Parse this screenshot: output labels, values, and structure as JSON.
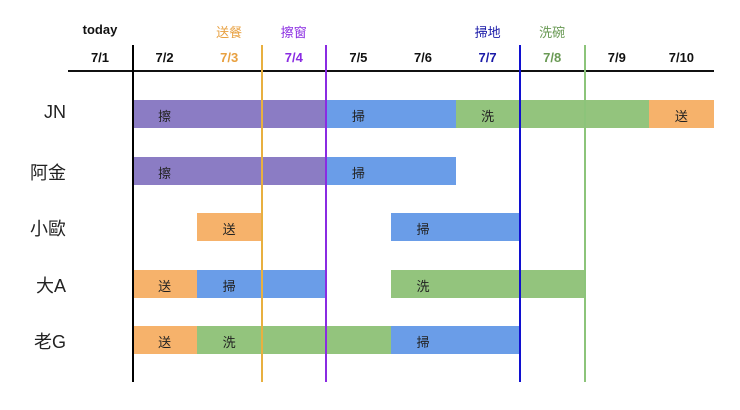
{
  "chart_data": {
    "type": "gantt",
    "title": "",
    "columns": [
      "7/1",
      "7/2",
      "7/3",
      "7/4",
      "7/5",
      "7/6",
      "7/7",
      "7/8",
      "7/9",
      "7/10"
    ],
    "column_colors": [
      "#111111",
      "#111111",
      "#e8a040",
      "#8a2be2",
      "#111111",
      "#111111",
      "#1a1aa8",
      "#6a9a55",
      "#111111",
      "#111111"
    ],
    "top_labels": [
      {
        "text": "today",
        "column": 0,
        "color": "#111111"
      },
      {
        "text": "送餐",
        "column": 2,
        "color": "#e8a040"
      },
      {
        "text": "擦窗",
        "column": 3,
        "color": "#8a2be2"
      },
      {
        "text": "掃地",
        "column": 6,
        "color": "#1a1aa8"
      },
      {
        "text": "洗碗",
        "column": 7,
        "color": "#6a9a55"
      }
    ],
    "deadline_lines": [
      {
        "name": "today",
        "after_column": 0,
        "color": "#000000"
      },
      {
        "name": "送餐",
        "after_column": 2,
        "color": "#e8b040"
      },
      {
        "name": "擦窗",
        "after_column": 3,
        "color": "#8a2be2"
      },
      {
        "name": "掃地",
        "after_column": 6,
        "color": "#1010d0"
      },
      {
        "name": "洗碗",
        "after_column": 7,
        "color": "#8cc47a"
      }
    ],
    "task_colors": {
      "擦": "#8b7cc4",
      "掃": "#6a9de8",
      "洗": "#93c47d",
      "送": "#f6b26b"
    },
    "rows": [
      {
        "name": "JN",
        "tasks": [
          {
            "label": "擦",
            "start": 1,
            "end": 4,
            "type": "擦"
          },
          {
            "label": "掃",
            "start": 4,
            "end": 6,
            "type": "掃"
          },
          {
            "label": "洗",
            "start": 6,
            "end": 9,
            "type": "洗"
          },
          {
            "label": "送",
            "start": 9,
            "end": 10,
            "type": "送"
          }
        ]
      },
      {
        "name": "阿金",
        "tasks": [
          {
            "label": "擦",
            "start": 1,
            "end": 4,
            "type": "擦"
          },
          {
            "label": "掃",
            "start": 4,
            "end": 6,
            "type": "掃"
          }
        ]
      },
      {
        "name": "小歐",
        "tasks": [
          {
            "label": "送",
            "start": 2,
            "end": 3,
            "type": "送"
          },
          {
            "label": "掃",
            "start": 5,
            "end": 7,
            "type": "掃"
          }
        ]
      },
      {
        "name": "大A",
        "tasks": [
          {
            "label": "送",
            "start": 1,
            "end": 2,
            "type": "送"
          },
          {
            "label": "掃",
            "start": 2,
            "end": 4,
            "type": "掃"
          },
          {
            "label": "洗",
            "start": 5,
            "end": 8,
            "type": "洗"
          }
        ]
      },
      {
        "name": "老G",
        "tasks": [
          {
            "label": "送",
            "start": 1,
            "end": 2,
            "type": "送"
          },
          {
            "label": "洗",
            "start": 2,
            "end": 5,
            "type": "洗"
          },
          {
            "label": "掃",
            "start": 5,
            "end": 7,
            "type": "掃"
          }
        ]
      }
    ],
    "legend": null,
    "grid": false
  }
}
